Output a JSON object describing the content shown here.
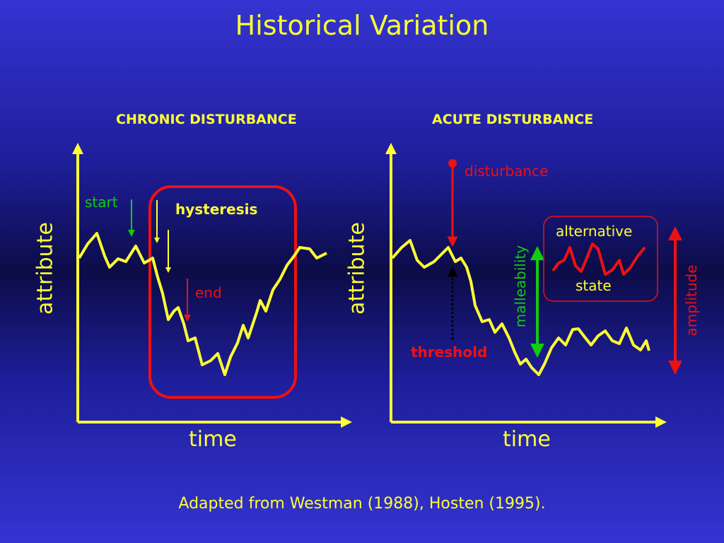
{
  "title": "Historical Variation",
  "panels": [
    {
      "heading": "CHRONIC DISTURBANCE",
      "y_axis_label": "attribute",
      "x_axis_label": "time"
    },
    {
      "heading": "ACUTE DISTURBANCE",
      "y_axis_label": "attribute",
      "x_axis_label": "time"
    }
  ],
  "annotations": {
    "start": "start",
    "hysteresis": "hysteresis",
    "end": "end",
    "disturbance": "disturbance",
    "threshold": "threshold",
    "malleability": "malleability",
    "alternative": "alternative",
    "state": "state",
    "amplitude": "amplitude"
  },
  "caption": "Adapted from Westman (1988), Hosten (1995).",
  "colors": {
    "text": "#ffff33",
    "curve": "#ffff33",
    "hysteresis_box": "#ee1111",
    "start_arrow": "#11cc11",
    "end_arrow": "#ee1111",
    "disturbance_arrow": "#ee1111",
    "threshold_arrow": "#000000",
    "malleability_arrow": "#11cc11",
    "amplitude_arrow": "#ee1111",
    "alt_state_line": "#ee1111"
  }
}
